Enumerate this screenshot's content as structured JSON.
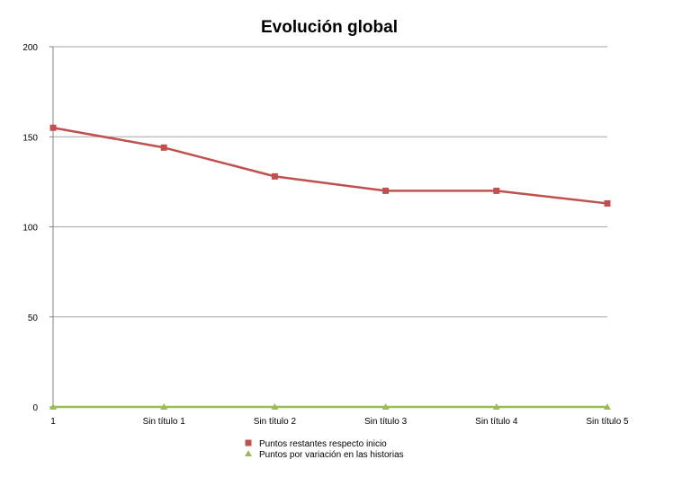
{
  "chart_data": {
    "type": "line",
    "title": "Evolución global",
    "categories": [
      "1",
      "Sin título 1",
      "Sin título 2",
      "Sin título 3",
      "Sin título 4",
      "Sin título 5"
    ],
    "series": [
      {
        "name": "Puntos restantes respecto inicio",
        "values": [
          155,
          144,
          128,
          120,
          120,
          113
        ],
        "color": "#c0504d",
        "marker": "square"
      },
      {
        "name": "Puntos por variación en las historias",
        "values": [
          0,
          0,
          0,
          0,
          0,
          0
        ],
        "color": "#9bbb59",
        "marker": "triangle"
      }
    ],
    "ylim": [
      0,
      200
    ],
    "yticks": [
      0,
      50,
      100,
      150,
      200
    ],
    "grid": true,
    "legend_position": "bottom"
  }
}
